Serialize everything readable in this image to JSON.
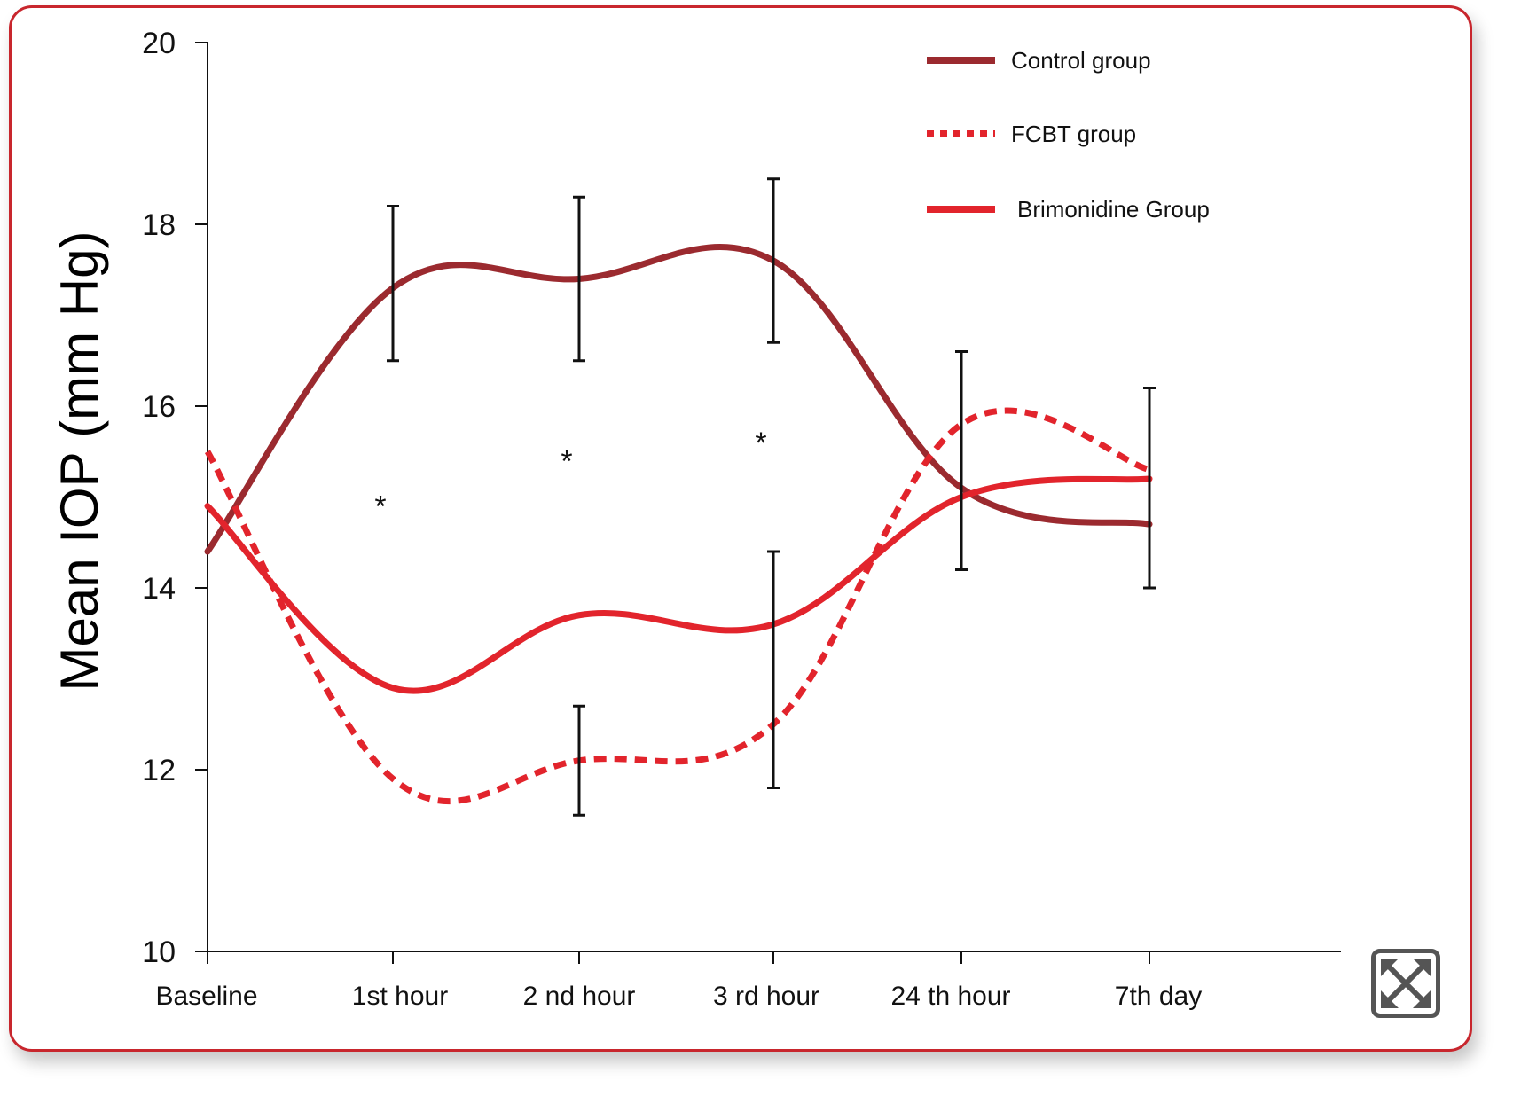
{
  "chart_data": {
    "type": "line",
    "title": "",
    "xlabel": "",
    "ylabel": "Mean IOP (mm Hg)",
    "ylim": [
      10,
      20
    ],
    "yticks": [
      "10",
      "12",
      "14",
      "16",
      "18",
      "20"
    ],
    "categories": [
      "Baseline",
      "1st hour",
      "2 nd hour",
      "3 rd hour",
      "24 th hour",
      "7th day"
    ],
    "series": [
      {
        "name": "Control group",
        "values": [
          14.4,
          17.3,
          17.4,
          17.6,
          15.1,
          14.7
        ],
        "color": "#9b2a2f",
        "style": "solid",
        "errors": [
          {
            "x_index": 1,
            "low": 16.5,
            "high": 18.2
          },
          {
            "x_index": 2,
            "low": 16.5,
            "high": 18.3
          },
          {
            "x_index": 3,
            "low": 16.7,
            "high": 18.5
          },
          {
            "x_index": 4,
            "low": 14.2,
            "high": 16.6
          },
          {
            "x_index": 5,
            "low": 14.0,
            "high": 16.2
          }
        ]
      },
      {
        "name": "FCBT group",
        "values": [
          15.5,
          11.9,
          12.1,
          12.5,
          15.8,
          15.3
        ],
        "color": "#e2242c",
        "style": "dashed",
        "errors": [
          {
            "x_index": 2,
            "low": 11.5,
            "high": 12.7
          },
          {
            "x_index": 3,
            "low": 11.8,
            "high": 14.4
          }
        ]
      },
      {
        "name": "Brimonidine Group",
        "values": [
          14.9,
          12.9,
          13.7,
          13.6,
          15.0,
          15.2
        ],
        "color": "#e2242c",
        "style": "solid",
        "errors": []
      }
    ],
    "annotations": [
      {
        "text": "*",
        "x_index": 1,
        "y": 15.0
      },
      {
        "text": "*",
        "x_index": 2,
        "y": 15.5
      },
      {
        "text": "*",
        "x_index": 3,
        "y": 15.7
      }
    ],
    "legend_position": "top-right",
    "grid": false
  },
  "expand_icon": "expand-arrows-icon",
  "colors": {
    "border": "#c8262d",
    "control": "#9b2a2f",
    "fcbt": "#e2242c",
    "brimonidine": "#e2242c"
  }
}
